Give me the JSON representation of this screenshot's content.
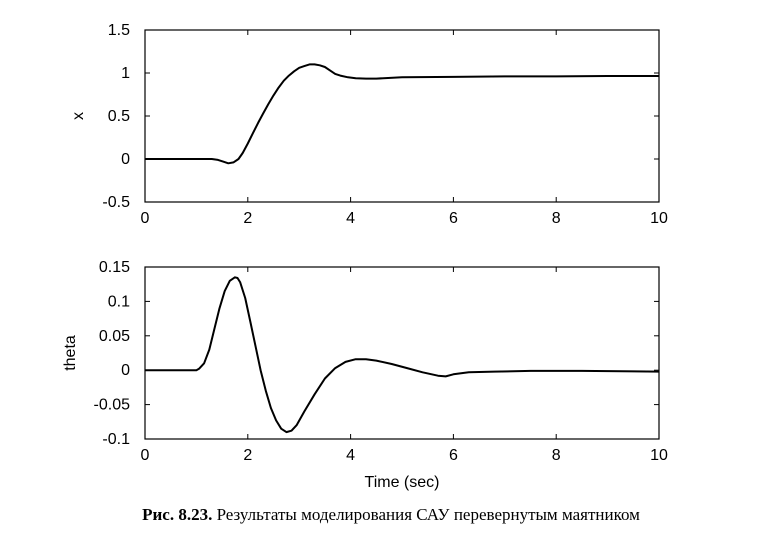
{
  "chart_data": [
    {
      "type": "line",
      "title": "",
      "xlabel": "",
      "ylabel": "x",
      "xlim": [
        0,
        10
      ],
      "ylim": [
        -0.5,
        1.5
      ],
      "xticks": [
        0,
        2,
        4,
        6,
        8,
        10
      ],
      "yticks": [
        -0.5,
        0,
        0.5,
        1,
        1.5
      ],
      "grid": false,
      "series": [
        {
          "color": "#000000",
          "points": [
            [
              0,
              0
            ],
            [
              0.5,
              0
            ],
            [
              1.0,
              0
            ],
            [
              1.3,
              0
            ],
            [
              1.42,
              -0.01
            ],
            [
              1.52,
              -0.03
            ],
            [
              1.62,
              -0.05
            ],
            [
              1.72,
              -0.04
            ],
            [
              1.82,
              0.0
            ],
            [
              1.9,
              0.07
            ],
            [
              2.0,
              0.18
            ],
            [
              2.1,
              0.3
            ],
            [
              2.2,
              0.42
            ],
            [
              2.3,
              0.53
            ],
            [
              2.4,
              0.64
            ],
            [
              2.5,
              0.74
            ],
            [
              2.6,
              0.83
            ],
            [
              2.7,
              0.91
            ],
            [
              2.8,
              0.97
            ],
            [
              2.9,
              1.02
            ],
            [
              3.0,
              1.06
            ],
            [
              3.1,
              1.08
            ],
            [
              3.2,
              1.1
            ],
            [
              3.3,
              1.1
            ],
            [
              3.4,
              1.09
            ],
            [
              3.5,
              1.07
            ],
            [
              3.6,
              1.03
            ],
            [
              3.7,
              0.99
            ],
            [
              3.8,
              0.97
            ],
            [
              3.95,
              0.95
            ],
            [
              4.1,
              0.94
            ],
            [
              4.3,
              0.935
            ],
            [
              4.5,
              0.935
            ],
            [
              5.0,
              0.95
            ],
            [
              6.0,
              0.955
            ],
            [
              7.0,
              0.96
            ],
            [
              8.0,
              0.96
            ],
            [
              9.0,
              0.965
            ],
            [
              10.0,
              0.965
            ]
          ]
        }
      ]
    },
    {
      "type": "line",
      "title": "",
      "xlabel": "Time (sec)",
      "ylabel": "theta",
      "xlim": [
        0,
        10
      ],
      "ylim": [
        -0.1,
        0.15
      ],
      "xticks": [
        0,
        2,
        4,
        6,
        8,
        10
      ],
      "yticks": [
        -0.1,
        -0.05,
        0,
        0.05,
        0.1,
        0.15
      ],
      "grid": false,
      "series": [
        {
          "color": "#000000",
          "points": [
            [
              0,
              0
            ],
            [
              0.5,
              0
            ],
            [
              1.0,
              0
            ],
            [
              1.05,
              0.002
            ],
            [
              1.15,
              0.01
            ],
            [
              1.25,
              0.03
            ],
            [
              1.35,
              0.06
            ],
            [
              1.45,
              0.09
            ],
            [
              1.55,
              0.115
            ],
            [
              1.65,
              0.13
            ],
            [
              1.75,
              0.135
            ],
            [
              1.8,
              0.134
            ],
            [
              1.85,
              0.128
            ],
            [
              1.95,
              0.105
            ],
            [
              2.05,
              0.07
            ],
            [
              2.15,
              0.035
            ],
            [
              2.25,
              0.0
            ],
            [
              2.35,
              -0.03
            ],
            [
              2.45,
              -0.055
            ],
            [
              2.55,
              -0.073
            ],
            [
              2.65,
              -0.085
            ],
            [
              2.75,
              -0.09
            ],
            [
              2.85,
              -0.088
            ],
            [
              2.95,
              -0.08
            ],
            [
              3.1,
              -0.06
            ],
            [
              3.3,
              -0.035
            ],
            [
              3.5,
              -0.012
            ],
            [
              3.7,
              0.003
            ],
            [
              3.9,
              0.012
            ],
            [
              4.1,
              0.016
            ],
            [
              4.3,
              0.016
            ],
            [
              4.5,
              0.014
            ],
            [
              4.8,
              0.009
            ],
            [
              5.1,
              0.003
            ],
            [
              5.4,
              -0.003
            ],
            [
              5.7,
              -0.008
            ],
            [
              5.85,
              -0.009
            ],
            [
              6.0,
              -0.006
            ],
            [
              6.3,
              -0.003
            ],
            [
              6.8,
              -0.002
            ],
            [
              7.5,
              -0.001
            ],
            [
              8.5,
              -0.001
            ],
            [
              10.0,
              -0.002
            ]
          ]
        }
      ]
    }
  ],
  "caption": {
    "label": "Рис. 8.23.",
    "text": " Результаты моделирования САУ перевернутым маятником"
  }
}
